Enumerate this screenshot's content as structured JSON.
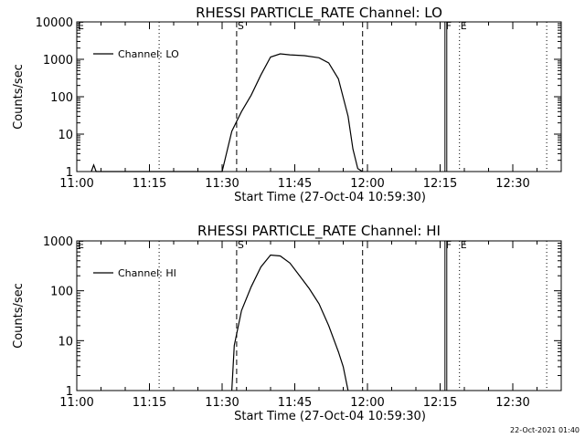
{
  "chart_data": [
    {
      "type": "line",
      "title": "RHESSI PARTICLE_RATE Channel: LO",
      "xlabel": "Start Time (27-Oct-04 10:59:30)",
      "ylabel": "Counts/sec",
      "yscale": "log",
      "xlim": [
        "11:00",
        "12:40"
      ],
      "ylim": [
        1,
        10000
      ],
      "x_ticks": [
        "11:00",
        "11:15",
        "11:30",
        "11:45",
        "12:00",
        "12:15",
        "12:30"
      ],
      "y_ticks": [
        "1",
        "10",
        "100",
        "1000",
        "10000"
      ],
      "legend": {
        "position": "top-left",
        "entries": [
          "Channel: LO"
        ]
      },
      "grid": false,
      "series": [
        {
          "name": "Channel: LO",
          "x": [
            "11:03",
            "11:03:30",
            "11:04",
            "11:30",
            "11:32",
            "11:34",
            "11:36",
            "11:38",
            "11:40",
            "11:42",
            "11:44",
            "11:47",
            "11:50",
            "11:52",
            "11:54",
            "11:56",
            "11:57",
            "11:58",
            "11:59"
          ],
          "y": [
            1,
            1.5,
            1,
            1,
            12,
            40,
            110,
            380,
            1150,
            1400,
            1320,
            1250,
            1100,
            800,
            300,
            30,
            4,
            1.2,
            1
          ]
        }
      ],
      "markers": [
        {
          "label": "E",
          "time": "11:00",
          "style": "dotted"
        },
        {
          "label": "",
          "time": "11:17",
          "style": "dotted"
        },
        {
          "label": "S",
          "time": "11:33",
          "style": "dashed"
        },
        {
          "label": "",
          "time": "11:59",
          "style": "dashed"
        },
        {
          "label": "F",
          "time": "12:16",
          "style": "solid"
        },
        {
          "label": "E",
          "time": "12:19",
          "style": "dotted"
        },
        {
          "label": "",
          "time": "12:37",
          "style": "dotted"
        }
      ]
    },
    {
      "type": "line",
      "title": "RHESSI PARTICLE_RATE Channel: HI",
      "xlabel": "Start Time (27-Oct-04 10:59:30)",
      "ylabel": "Counts/sec",
      "yscale": "log",
      "xlim": [
        "11:00",
        "12:40"
      ],
      "ylim": [
        1,
        1000
      ],
      "x_ticks": [
        "11:00",
        "11:15",
        "11:30",
        "11:45",
        "12:00",
        "12:15",
        "12:30"
      ],
      "y_ticks": [
        "1",
        "10",
        "100",
        "1000"
      ],
      "legend": {
        "position": "top-left",
        "entries": [
          "Channel: HI"
        ]
      },
      "grid": false,
      "series": [
        {
          "name": "Channel: HI",
          "x": [
            "11:32",
            "11:32:30",
            "11:34",
            "11:36",
            "11:38",
            "11:40",
            "11:42",
            "11:44",
            "11:46",
            "11:48",
            "11:50",
            "11:52",
            "11:54",
            "11:55",
            "11:56"
          ],
          "y": [
            1,
            8,
            40,
            120,
            300,
            520,
            500,
            360,
            200,
            110,
            55,
            20,
            6,
            3,
            1
          ]
        }
      ],
      "markers": [
        {
          "label": "E",
          "time": "11:00",
          "style": "dotted"
        },
        {
          "label": "",
          "time": "11:17",
          "style": "dotted"
        },
        {
          "label": "S",
          "time": "11:33",
          "style": "dashed"
        },
        {
          "label": "",
          "time": "11:59",
          "style": "dashed"
        },
        {
          "label": "F",
          "time": "12:16",
          "style": "solid"
        },
        {
          "label": "E",
          "time": "12:19",
          "style": "dotted"
        },
        {
          "label": "",
          "time": "12:37",
          "style": "dotted"
        }
      ]
    }
  ],
  "footer": {
    "timestamp": "22-Oct-2021 01:40"
  },
  "colors": {
    "line": "#000000",
    "background": "#ffffff"
  }
}
